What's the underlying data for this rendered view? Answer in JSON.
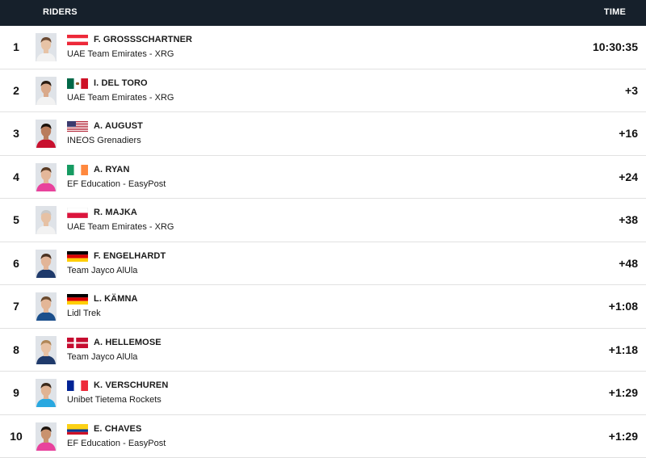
{
  "header": {
    "riders_label": "RIDERS",
    "time_label": "TIME"
  },
  "riders": [
    {
      "rank": "1",
      "name": "F. GROSSSCHARTNER",
      "team": "UAE Team Emirates - XRG",
      "time": "10:30:35",
      "flag": "austria",
      "kit": "#f2f2f2",
      "skin": "#e7c3a6",
      "hair": "#6b4a33"
    },
    {
      "rank": "2",
      "name": "I. DEL TORO",
      "team": "UAE Team Emirates - XRG",
      "time": "+3",
      "flag": "mexico",
      "kit": "#f2f2f2",
      "skin": "#d9a98a",
      "hair": "#2a1c12"
    },
    {
      "rank": "3",
      "name": "A. AUGUST",
      "team": "INEOS Grenadiers",
      "time": "+16",
      "flag": "usa",
      "kit": "#c8102e",
      "skin": "#b97c5c",
      "hair": "#1a120c"
    },
    {
      "rank": "4",
      "name": "A. RYAN",
      "team": "EF Education - EasyPost",
      "time": "+24",
      "flag": "ireland",
      "kit": "#e8429c",
      "skin": "#e4b79a",
      "hair": "#5a3b24"
    },
    {
      "rank": "5",
      "name": "R. MAJKA",
      "team": "UAE Team Emirates - XRG",
      "time": "+38",
      "flag": "poland",
      "kit": "#f2f2f2",
      "skin": "#e6c1a4",
      "hair": "#c9c9c9"
    },
    {
      "rank": "6",
      "name": "F. ENGELHARDT",
      "team": "Team Jayco AlUla",
      "time": "+48",
      "flag": "germany",
      "kit": "#1f3a6b",
      "skin": "#e2b598",
      "hair": "#4a3222"
    },
    {
      "rank": "7",
      "name": "L. KÄMNA",
      "team": "Lidl Trek",
      "time": "+1:08",
      "flag": "germany",
      "kit": "#1b4f8c",
      "skin": "#e3b697",
      "hair": "#6a4a2e"
    },
    {
      "rank": "8",
      "name": "A. HELLEMOSE",
      "team": "Team Jayco AlUla",
      "time": "+1:18",
      "flag": "denmark",
      "kit": "#1f3a6b",
      "skin": "#e8c2a4",
      "hair": "#b08656"
    },
    {
      "rank": "9",
      "name": "K. VERSCHUREN",
      "team": "Unibet Tietema Rockets",
      "time": "+1:29",
      "flag": "france",
      "kit": "#29a8e0",
      "skin": "#e0b393",
      "hair": "#3b2a1c"
    },
    {
      "rank": "10",
      "name": "E. CHAVES",
      "team": "EF Education - EasyPost",
      "time": "+1:29",
      "flag": "colombia",
      "kit": "#e8429c",
      "skin": "#c9926e",
      "hair": "#1c140e"
    }
  ]
}
